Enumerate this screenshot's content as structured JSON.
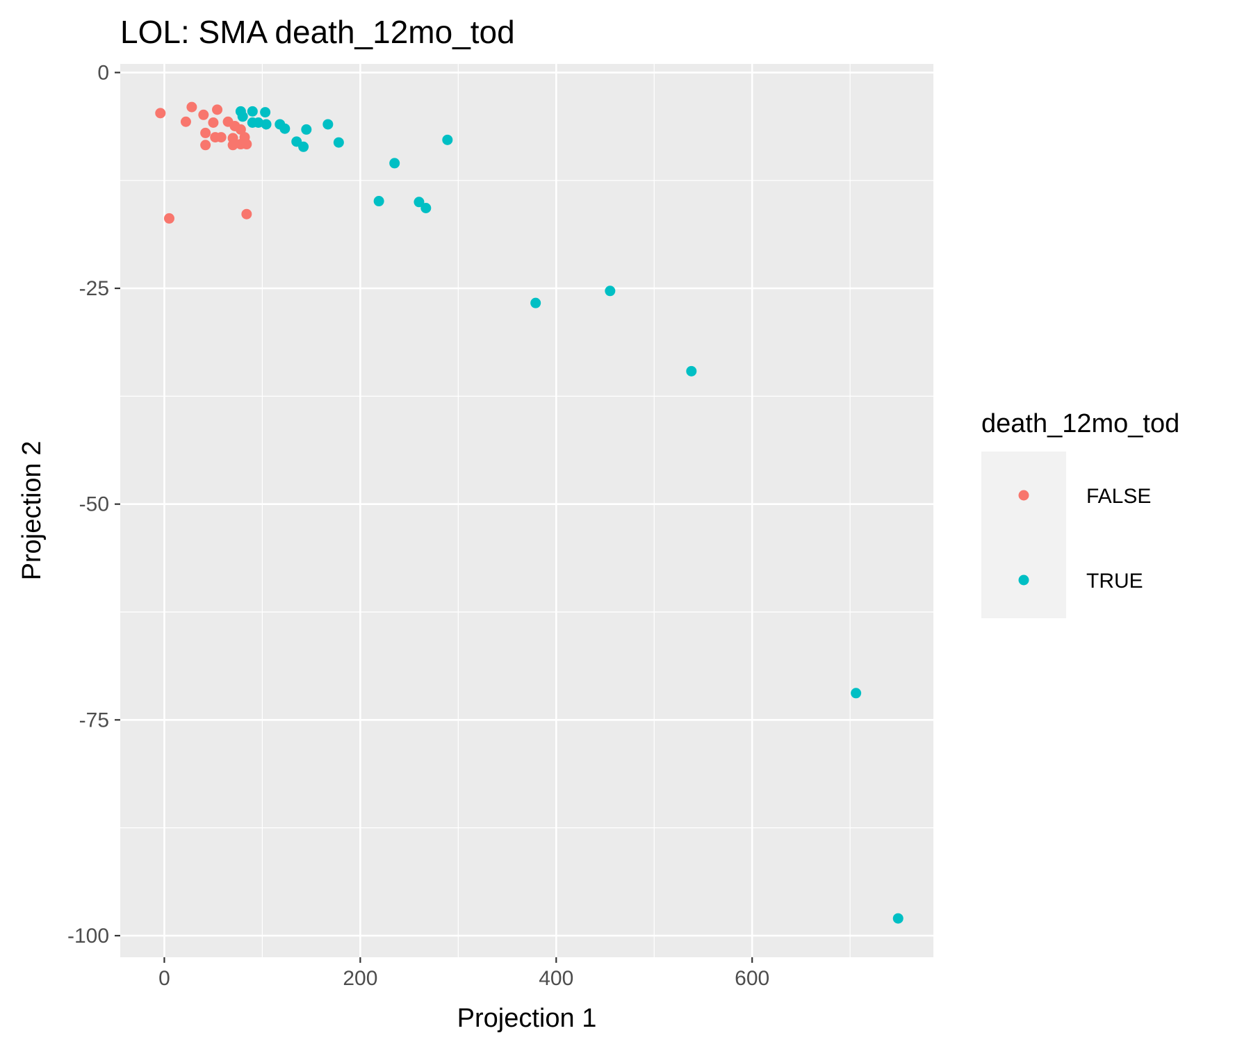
{
  "chart_data": {
    "type": "scatter",
    "title": "LOL: SMA death_12mo_tod",
    "xlabel": "Projection 1",
    "ylabel": "Projection 2",
    "xlim": [
      -45,
      785
    ],
    "ylim": [
      -102.5,
      1
    ],
    "x_ticks": [
      0,
      200,
      400,
      600
    ],
    "x_tick_labels": [
      "0",
      "200",
      "400",
      "600"
    ],
    "x_minor_ticks": [
      100,
      300,
      500,
      700
    ],
    "y_ticks": [
      0,
      -25,
      -50,
      -75,
      -100
    ],
    "y_tick_labels": [
      "0",
      "-25",
      "-50",
      "-75",
      "-100"
    ],
    "y_minor_ticks": [
      -12.5,
      -37.5,
      -62.5,
      -87.5
    ],
    "grid": true,
    "panel_background": "#ebebeb",
    "grid_color": "#ffffff",
    "legend": {
      "title": "death_12mo_tod",
      "placement": "right",
      "background": "#f2f2f2"
    },
    "series": [
      {
        "name": "FALSE",
        "color": "#f8766d",
        "points": [
          [
            -4,
            -4.7
          ],
          [
            28,
            -4.0
          ],
          [
            54,
            -4.3
          ],
          [
            22,
            -5.7
          ],
          [
            40,
            -4.9
          ],
          [
            50,
            -5.8
          ],
          [
            65,
            -5.7
          ],
          [
            72,
            -6.2
          ],
          [
            78,
            -6.6
          ],
          [
            42,
            -7.0
          ],
          [
            52,
            -7.5
          ],
          [
            58,
            -7.5
          ],
          [
            70,
            -7.6
          ],
          [
            82,
            -7.5
          ],
          [
            42,
            -8.4
          ],
          [
            70,
            -8.4
          ],
          [
            78,
            -8.3
          ],
          [
            84,
            -8.3
          ],
          [
            5,
            -16.9
          ],
          [
            84,
            -16.4
          ]
        ]
      },
      {
        "name": "TRUE",
        "color": "#00bfc4",
        "points": [
          [
            78,
            -4.5
          ],
          [
            90,
            -4.5
          ],
          [
            103,
            -4.6
          ],
          [
            80,
            -5.1
          ],
          [
            90,
            -5.8
          ],
          [
            96,
            -5.8
          ],
          [
            104,
            -6.0
          ],
          [
            118,
            -6.0
          ],
          [
            123,
            -6.5
          ],
          [
            145,
            -6.6
          ],
          [
            167,
            -6.0
          ],
          [
            135,
            -8.0
          ],
          [
            142,
            -8.6
          ],
          [
            178,
            -8.1
          ],
          [
            289,
            -7.8
          ],
          [
            235,
            -10.5
          ],
          [
            219,
            -14.9
          ],
          [
            260,
            -15.0
          ],
          [
            267,
            -15.7
          ],
          [
            379,
            -26.7
          ],
          [
            455,
            -25.3
          ],
          [
            538,
            -34.6
          ],
          [
            706,
            -71.9
          ],
          [
            749,
            -98.0
          ]
        ]
      }
    ]
  }
}
